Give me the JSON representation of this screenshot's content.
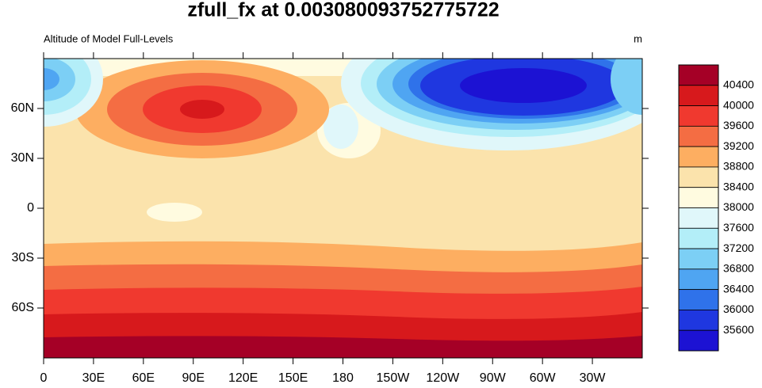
{
  "chart_data": {
    "type": "map",
    "title": "zfull_fx at 0.003080093752775722",
    "subtitle_left": "Altitude of Model Full-Levels",
    "subtitle_right": "m",
    "xlim": [
      0,
      360
    ],
    "ylim": [
      -90,
      90
    ],
    "xticks": [
      0,
      {
        "value": 30,
        "label": "30E"
      },
      {
        "value": 60,
        "label": "60E"
      },
      {
        "value": 90,
        "label": "90E"
      },
      {
        "value": 120,
        "label": "120E"
      },
      {
        "value": 150,
        "label": "150E"
      },
      180,
      {
        "value": 210,
        "label": "150W"
      },
      {
        "value": 240,
        "label": "120W"
      },
      {
        "value": 270,
        "label": "90W"
      },
      {
        "value": 300,
        "label": "60W"
      },
      {
        "value": 330,
        "label": "30W"
      }
    ],
    "yticks": [
      {
        "value": -60,
        "label": "60S"
      },
      {
        "value": -30,
        "label": "30S"
      },
      0,
      {
        "value": 30,
        "label": "30N"
      },
      {
        "value": 60,
        "label": "60N"
      }
    ],
    "levels": [
      40400,
      40000,
      39600,
      39200,
      38800,
      38400,
      38000,
      37600,
      37200,
      36800,
      36400,
      36000,
      35600
    ],
    "colors": [
      "#a50026",
      "#d7191c",
      "#f0392f",
      "#f46d43",
      "#fdae61",
      "#fbe3ac",
      "#fffbe0",
      "#e0f7fa",
      "#b3eef8",
      "#7ccff5",
      "#4fa5f2",
      "#2f72ea",
      "#1f37e0",
      "#1c12d3"
    ]
  }
}
